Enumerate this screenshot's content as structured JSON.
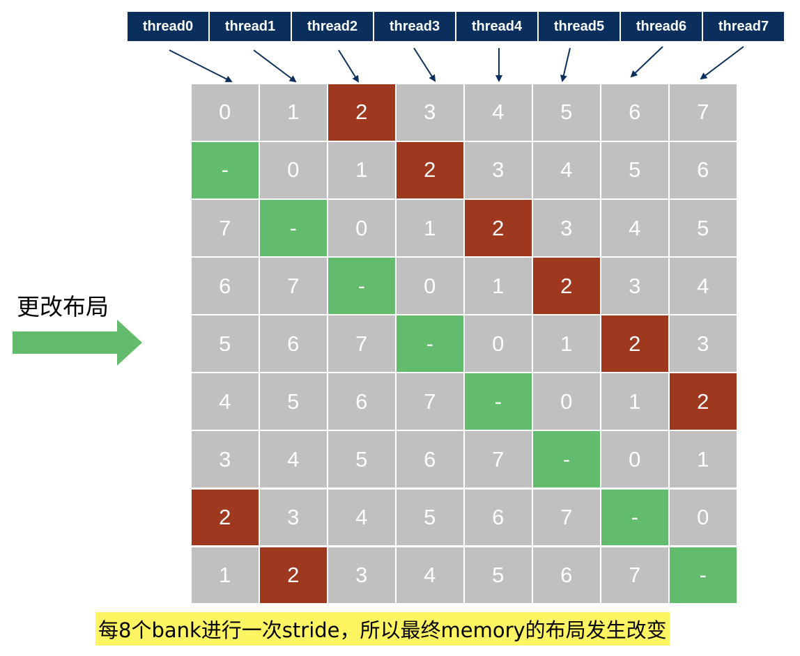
{
  "threads": [
    "thread0",
    "thread1",
    "thread2",
    "thread3",
    "thread4",
    "thread5",
    "thread6",
    "thread7"
  ],
  "side_label": "更改布局",
  "caption": "每8个bank进行一次stride，所以最终memory的布局发生改变",
  "colors": {
    "thread_box": "#0b2f5c",
    "cell_default": "#c0c0c0",
    "cell_empty": "#63bb6d",
    "cell_highlight": "#9e3920",
    "caption_bg": "#fff563",
    "arrow": "#0b2f5c"
  },
  "grid": {
    "rows": [
      [
        "0",
        "1",
        "2",
        "3",
        "4",
        "5",
        "6",
        "7"
      ],
      [
        "-",
        "0",
        "1",
        "2",
        "3",
        "4",
        "5",
        "6"
      ],
      [
        "7",
        "-",
        "0",
        "1",
        "2",
        "3",
        "4",
        "5"
      ],
      [
        "6",
        "7",
        "-",
        "0",
        "1",
        "2",
        "3",
        "4"
      ],
      [
        "5",
        "6",
        "7",
        "-",
        "0",
        "1",
        "2",
        "3"
      ],
      [
        "4",
        "5",
        "6",
        "7",
        "-",
        "0",
        "1",
        "2"
      ],
      [
        "3",
        "4",
        "5",
        "6",
        "7",
        "-",
        "0",
        "1"
      ],
      [
        "2",
        "3",
        "4",
        "5",
        "6",
        "7",
        "-",
        "0"
      ],
      [
        "1",
        "2",
        "3",
        "4",
        "5",
        "6",
        "7",
        "-"
      ]
    ],
    "highlight_value": "2",
    "empty_value": "-"
  }
}
